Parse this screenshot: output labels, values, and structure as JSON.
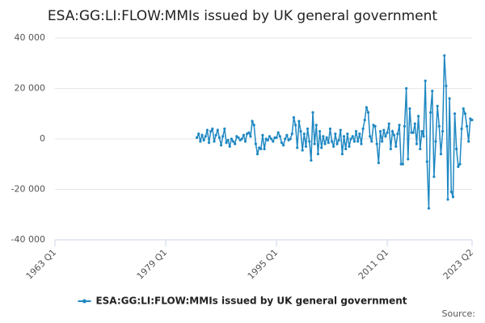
{
  "chart_data": {
    "type": "line",
    "title": "ESA:GG:LI:FLOW:MMIs issued by UK general government",
    "source": "Source:",
    "categories": [
      "1963 Q1",
      null,
      null,
      null,
      null,
      null,
      null,
      null,
      null,
      null,
      null,
      null,
      null,
      null,
      null,
      null,
      null,
      null,
      null,
      null,
      null,
      null,
      null,
      null,
      null,
      null,
      null,
      null,
      null,
      null,
      null,
      null,
      null,
      null,
      null,
      null,
      null,
      null,
      null,
      null,
      null,
      null,
      null,
      null,
      null,
      null,
      null,
      null,
      null,
      null,
      null,
      null,
      null,
      null,
      null,
      null,
      null,
      null,
      null,
      null,
      null,
      null,
      null,
      null,
      "1979 Q1",
      null,
      null,
      null,
      null,
      null,
      null,
      null,
      null,
      null,
      null,
      null,
      null,
      null,
      null,
      null,
      null,
      null,
      null,
      null,
      null,
      null,
      null,
      null,
      null,
      null,
      null,
      null,
      null,
      null,
      null,
      null,
      null,
      null,
      null,
      null,
      null,
      null,
      null,
      null,
      null,
      null,
      null,
      null,
      null,
      null,
      null,
      null,
      null,
      null,
      null,
      null,
      null,
      null,
      null,
      null,
      null,
      null,
      null,
      null,
      null,
      null,
      null,
      null,
      "1995 Q1",
      null,
      null,
      null,
      null,
      null,
      null,
      null,
      null,
      null,
      null,
      null,
      null,
      null,
      null,
      null,
      null,
      null,
      null,
      null,
      null,
      null,
      null,
      null,
      null,
      null,
      null,
      null,
      null,
      null,
      null,
      null,
      null,
      null,
      null,
      null,
      null,
      null,
      null,
      null,
      null,
      null,
      null,
      null,
      null,
      null,
      null,
      null,
      null,
      null,
      null,
      null,
      null,
      null,
      null,
      null,
      null,
      null,
      null,
      null,
      null,
      null,
      null,
      null,
      "2011 Q1",
      null,
      null,
      null,
      null,
      null,
      null,
      null,
      null,
      null,
      null,
      null,
      null,
      null,
      null,
      null,
      null,
      null,
      null,
      null,
      null,
      null,
      null,
      null,
      null,
      null,
      null,
      null,
      null,
      null,
      null,
      null,
      null,
      null,
      null,
      null,
      null,
      null,
      null,
      null,
      null,
      null,
      null,
      null,
      null,
      null,
      null,
      null,
      null,
      "2023 Q2"
    ],
    "series": [
      {
        "name": "ESA:GG:LI:FLOW:MMIs issued by UK general government",
        "color": "#1f88c2",
        "values": [
          null,
          null,
          null,
          null,
          null,
          null,
          null,
          null,
          null,
          null,
          null,
          null,
          null,
          null,
          null,
          null,
          null,
          null,
          null,
          null,
          null,
          null,
          null,
          null,
          null,
          null,
          null,
          null,
          null,
          null,
          null,
          null,
          null,
          null,
          null,
          null,
          null,
          null,
          null,
          null,
          null,
          null,
          null,
          null,
          null,
          null,
          null,
          null,
          null,
          null,
          null,
          null,
          null,
          null,
          null,
          null,
          null,
          null,
          null,
          null,
          null,
          null,
          null,
          null,
          null,
          null,
          null,
          null,
          null,
          null,
          null,
          null,
          null,
          null,
          null,
          null,
          null,
          null,
          null,
          null,
          null,
          null,
          500,
          2000,
          -1000,
          1500,
          -500,
          1000,
          3500,
          -1500,
          3000,
          4000,
          -1000,
          1500,
          3500,
          500,
          -2500,
          1000,
          4000,
          -1500,
          -500,
          -3000,
          0,
          -1000,
          -2000,
          1000,
          500,
          -500,
          0,
          1500,
          -1000,
          2000,
          2500,
          1000,
          7000,
          5500,
          -2000,
          -6000,
          -3500,
          -4000,
          1500,
          -4000,
          0,
          -500,
          1000,
          0,
          -1000,
          500,
          500,
          2500,
          1000,
          -1500,
          -2500,
          0,
          1500,
          -500,
          0,
          2000,
          8500,
          5500,
          -3500,
          7000,
          3000,
          -4500,
          2000,
          -3000,
          4000,
          -1000,
          -8500,
          10500,
          -2000,
          5500,
          -6000,
          3000,
          -3500,
          1000,
          -2000,
          500,
          -1500,
          4000,
          -1000,
          -3000,
          2000,
          -2000,
          -500,
          3500,
          -6000,
          1000,
          -4000,
          2000,
          -3000,
          0,
          1000,
          -1000,
          3000,
          -1000,
          2000,
          -2000,
          4000,
          7500,
          12500,
          10500,
          1000,
          -1000,
          5500,
          5000,
          -2000,
          -9500,
          3000,
          -1000,
          3500,
          1000,
          2500,
          6000,
          -4000,
          3000,
          1500,
          -3000,
          2000,
          5500,
          -10000,
          -10000,
          5000,
          20000,
          -8000,
          12000,
          2500,
          2500,
          6000,
          -2000,
          9000,
          -4000,
          3000,
          1000,
          23000,
          -9000,
          -27500,
          10500,
          19000,
          -15000,
          -1000,
          13000,
          5000,
          -6000,
          3000,
          33000,
          21000,
          -24000,
          16000,
          -21000,
          -23000,
          10000,
          -4000,
          -11000,
          -10000,
          4000,
          12000,
          10000,
          5000,
          -1000,
          8000,
          7500
        ]
      }
    ],
    "ylim": [
      -40000,
      40000
    ],
    "yticks": [
      {
        "value": -40000,
        "label": "-40 000"
      },
      {
        "value": -20000,
        "label": "-20 000"
      },
      0,
      {
        "value": 20000,
        "label": "20 000"
      },
      {
        "value": 40000,
        "label": "40 000"
      }
    ],
    "grid": true
  }
}
